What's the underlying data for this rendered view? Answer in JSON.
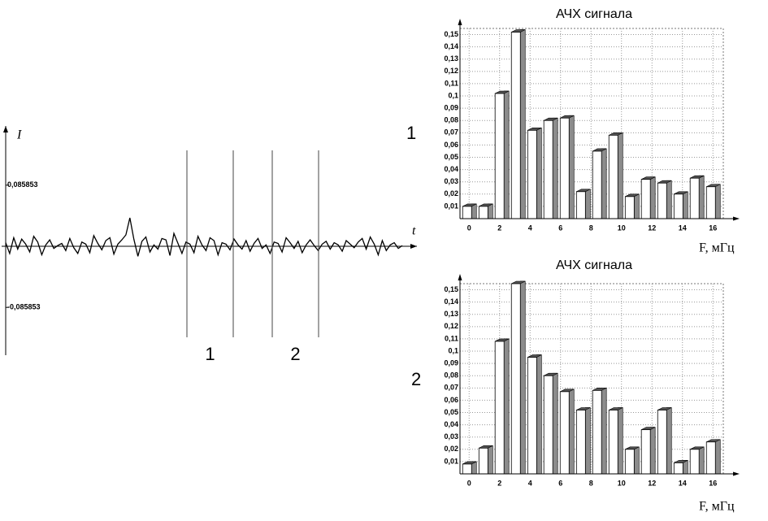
{
  "chart_data": [
    {
      "type": "line",
      "y_label": "I",
      "x_label": "t",
      "color": "#000000",
      "ylim": [
        -0.153,
        0.169
      ],
      "yticks": [
        {
          "value": 0.085853,
          "label": "0,085853"
        },
        {
          "value": -0.085853,
          "label": "-0,085853"
        }
      ],
      "annotations": [
        "1",
        "2"
      ],
      "values": [
        0.005,
        -0.01,
        0.012,
        -0.004,
        0.01,
        0.003,
        -0.008,
        0.014,
        0.006,
        -0.012,
        0.002,
        0.009,
        -0.003,
        0.001,
        0.004,
        -0.006,
        0.011,
        -0.002,
        -0.01,
        0.006,
        0.003,
        -0.009,
        0.015,
        0.004,
        -0.005,
        0.008,
        0.012,
        -0.011,
        0.003,
        0.009,
        0.016,
        0.04,
        0.01,
        -0.014,
        0.007,
        0.013,
        -0.008,
        0.002,
        -0.004,
        0.011,
        0.009,
        -0.013,
        0.018,
        0.004,
        -0.01,
        0.006,
        0.003,
        -0.009,
        0.014,
        0.002,
        -0.006,
        0.012,
        0.008,
        -0.012,
        0.005,
        0.003,
        -0.005,
        0.01,
        0.002,
        -0.004,
        0.008,
        -0.007,
        0.004,
        0.011,
        -0.003,
        0.002,
        -0.01,
        0.006,
        0.004,
        -0.008,
        0.012,
        0.005,
        -0.003,
        0.007,
        -0.009,
        0.002,
        0.009,
        0.001,
        -0.006,
        0.003,
        0.007,
        -0.004,
        0.005,
        0.002,
        -0.007,
        0.008,
        0.003,
        -0.002,
        0.006,
        0.011,
        -0.004,
        0.013,
        0.003,
        -0.012,
        0.008,
        -0.006,
        0.002,
        0.005,
        -0.003,
        0.001
      ]
    },
    {
      "type": "bar",
      "title": "АЧХ сигнала",
      "panel_label": "1",
      "x_label": "F, мГц",
      "color": "#ffffff",
      "side_color": "#8c8c8c",
      "grid": true,
      "x": [
        0,
        1.07,
        2.13,
        3.2,
        4.27,
        5.33,
        6.4,
        7.47,
        8.53,
        9.6,
        10.67,
        11.73,
        12.8,
        13.87,
        14.93,
        16
      ],
      "values": [
        0.01,
        0.01,
        0.102,
        0.152,
        0.072,
        0.08,
        0.082,
        0.022,
        0.055,
        0.068,
        0.018,
        0.032,
        0.029,
        0.02,
        0.033,
        0.026
      ],
      "xlim": [
        -0.6,
        17
      ],
      "xticks": [
        0,
        2,
        4,
        6,
        8,
        10,
        12,
        14,
        16
      ],
      "ylim": [
        0,
        0.155
      ],
      "yticks": [
        {
          "value": 0.01,
          "label": "0,01"
        },
        {
          "value": 0.02,
          "label": "0,02"
        },
        {
          "value": 0.03,
          "label": "0,03"
        },
        {
          "value": 0.04,
          "label": "0,04"
        },
        {
          "value": 0.05,
          "label": "0,05"
        },
        {
          "value": 0.06,
          "label": "0,06"
        },
        {
          "value": 0.07,
          "label": "0,07"
        },
        {
          "value": 0.08,
          "label": "0,08"
        },
        {
          "value": 0.09,
          "label": "0,09"
        },
        {
          "value": 0.1,
          "label": "0,1"
        },
        {
          "value": 0.11,
          "label": "0,11"
        },
        {
          "value": 0.12,
          "label": "0,12"
        },
        {
          "value": 0.13,
          "label": "0,13"
        },
        {
          "value": 0.14,
          "label": "0,14"
        },
        {
          "value": 0.15,
          "label": "0,15"
        }
      ]
    },
    {
      "type": "bar",
      "title": "АЧХ сигнала",
      "panel_label": "2",
      "x_label": "F, мГц",
      "color": "#ffffff",
      "side_color": "#8c8c8c",
      "grid": true,
      "x": [
        0,
        1.07,
        2.13,
        3.2,
        4.27,
        5.33,
        6.4,
        7.47,
        8.53,
        9.6,
        10.67,
        11.73,
        12.8,
        13.87,
        14.93,
        16
      ],
      "values": [
        0.008,
        0.021,
        0.108,
        0.155,
        0.095,
        0.08,
        0.067,
        0.052,
        0.068,
        0.052,
        0.02,
        0.036,
        0.052,
        0.009,
        0.02,
        0.026
      ],
      "xlim": [
        -0.6,
        17
      ],
      "xticks": [
        0,
        2,
        4,
        6,
        8,
        10,
        12,
        14,
        16
      ],
      "ylim": [
        0,
        0.155
      ],
      "yticks": [
        {
          "value": 0.01,
          "label": "0,01"
        },
        {
          "value": 0.02,
          "label": "0,02"
        },
        {
          "value": 0.03,
          "label": "0,03"
        },
        {
          "value": 0.04,
          "label": "0,04"
        },
        {
          "value": 0.05,
          "label": "0,05"
        },
        {
          "value": 0.06,
          "label": "0,06"
        },
        {
          "value": 0.07,
          "label": "0,07"
        },
        {
          "value": 0.08,
          "label": "0,08"
        },
        {
          "value": 0.09,
          "label": "0,09"
        },
        {
          "value": 0.1,
          "label": "0,1"
        },
        {
          "value": 0.11,
          "label": "0,11"
        },
        {
          "value": 0.12,
          "label": "0,12"
        },
        {
          "value": 0.13,
          "label": "0,13"
        },
        {
          "value": 0.14,
          "label": "0,14"
        },
        {
          "value": 0.15,
          "label": "0,15"
        }
      ]
    }
  ]
}
